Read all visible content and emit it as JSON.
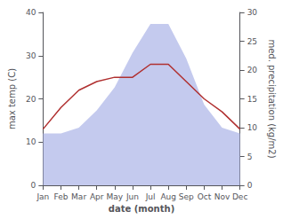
{
  "chart_data": {
    "type": "line",
    "categories": [
      "Jan",
      "Feb",
      "Mar",
      "Apr",
      "May",
      "Jun",
      "Jul",
      "Aug",
      "Sep",
      "Oct",
      "Nov",
      "Dec"
    ],
    "series": [
      {
        "type": "area",
        "color": "#b0b8e8",
        "axis": "y2",
        "values": [
          9,
          9,
          10,
          13,
          17,
          23,
          28,
          28,
          22,
          14,
          10,
          9
        ]
      },
      {
        "type": "line",
        "color": "#b03030",
        "values": [
          13,
          18,
          22,
          24,
          25,
          25,
          28,
          28,
          24,
          20,
          17,
          13
        ]
      }
    ],
    "xlabel": "date (month)",
    "ylabel": "max temp (C)",
    "y2label": "med. precipitation (kg/m2)",
    "ylim": [
      0,
      40
    ],
    "yticks": [
      0,
      10,
      20,
      30,
      40
    ],
    "y2lim": [
      0,
      30
    ],
    "y2ticks": [
      0,
      5,
      10,
      15,
      20,
      25,
      30
    ],
    "grid": false
  }
}
